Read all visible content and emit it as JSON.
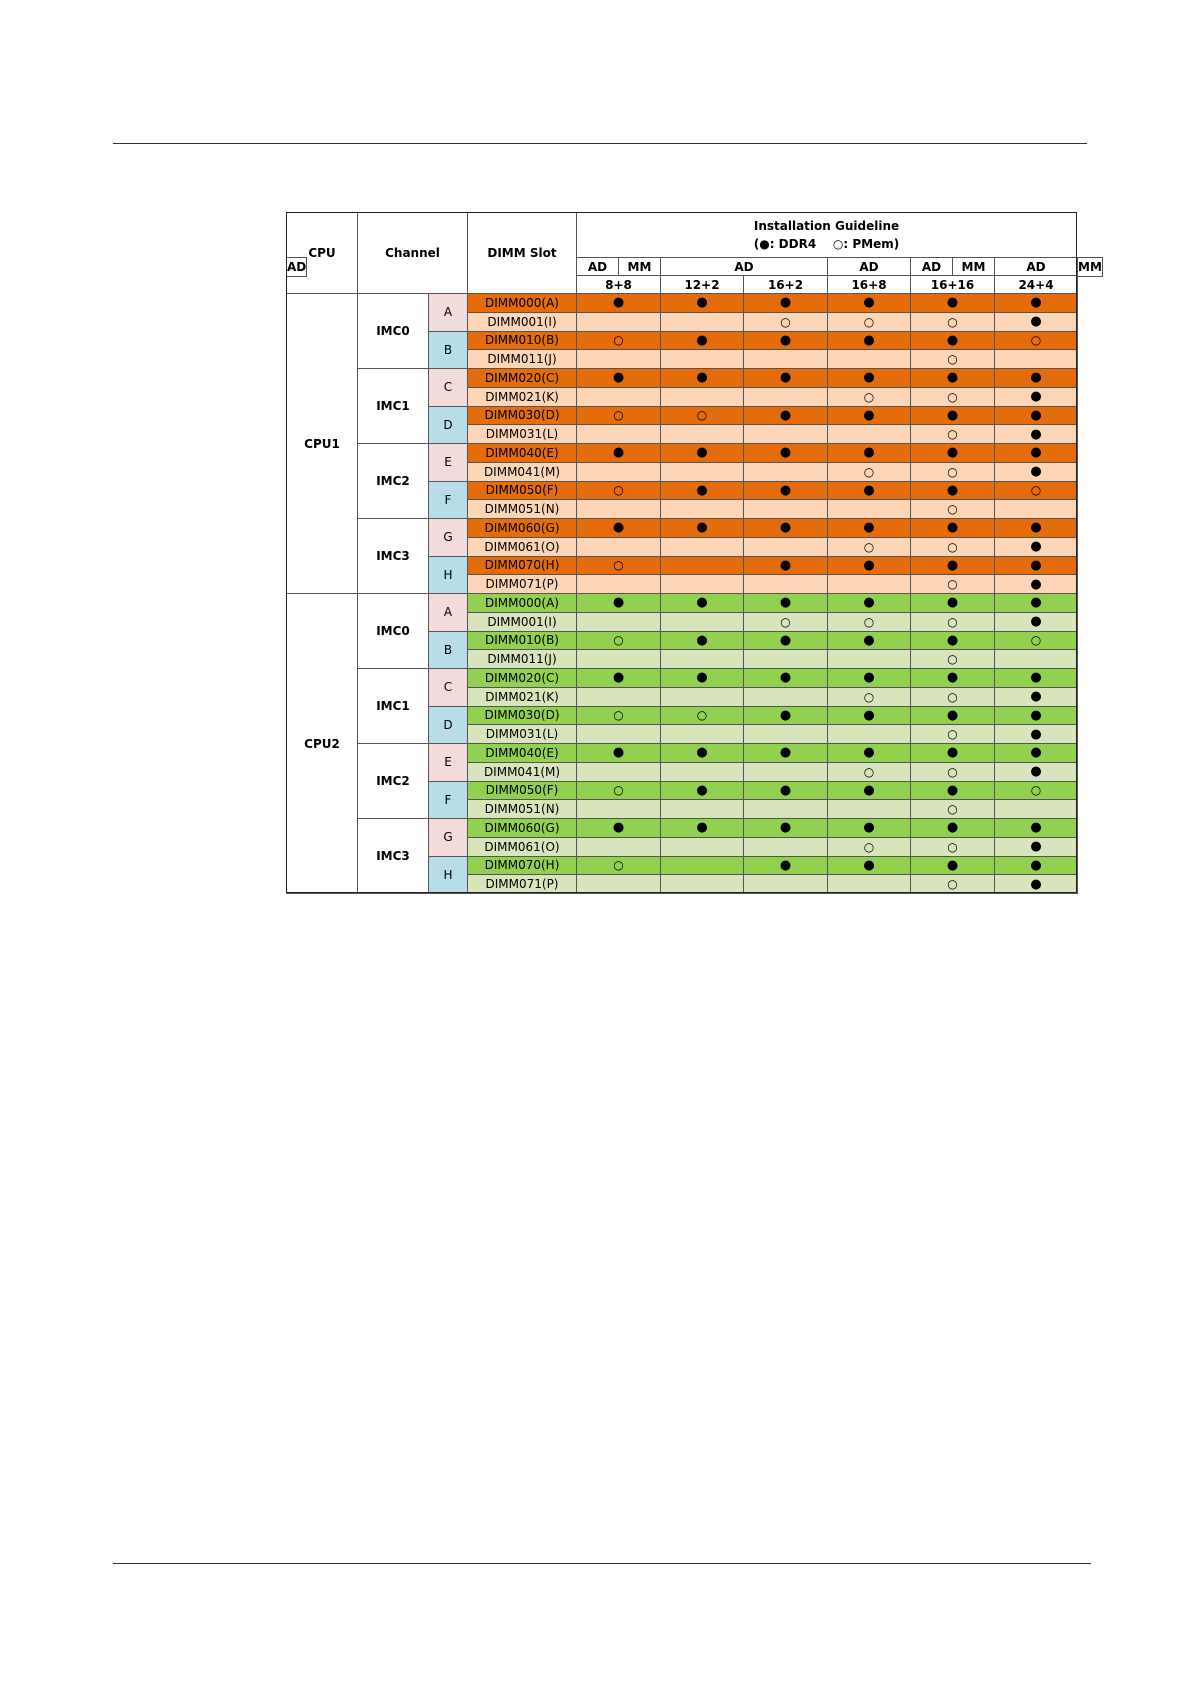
{
  "header": {
    "cpu": "CPU",
    "channel": "Channel",
    "dimm_slot": "DIMM Slot",
    "guideline_title": "Installation Guideline",
    "legend_open": "(",
    "legend_ddr4_symbol": "●",
    "legend_ddr4_label": ": DDR4",
    "legend_pmem_symbol": "○",
    "legend_pmem_label": ": PMem)"
  },
  "modes": [
    {
      "label": "AD",
      "span": 1
    },
    {
      "label": "MM",
      "span": 1
    },
    {
      "label": "AD",
      "span": 2
    },
    {
      "label": "AD",
      "span": 2
    },
    {
      "label": "AD",
      "span": 1
    },
    {
      "label": "MM",
      "span": 1
    },
    {
      "label": "AD",
      "span": 1
    },
    {
      "label": "MM",
      "span": 1
    },
    {
      "label": "AD",
      "span": 2
    }
  ],
  "configs": [
    "8+8",
    "12+2",
    "16+2",
    "16+8",
    "16+16",
    "24+4"
  ],
  "symbols": {
    "D": "●",
    "P": "○"
  },
  "colors": {
    "cpu1_primary": "#e46c0a",
    "cpu1_secondary": "#fbd5b5",
    "cpu2_primary": "#92d050",
    "cpu2_secondary": "#d7e4bc",
    "letter_pink": "#f2dcdb",
    "letter_blue": "#b7dee8"
  },
  "cpus": [
    {
      "name": "CPU1",
      "imcs": [
        {
          "name": "IMC0",
          "channels": [
            {
              "letter": "A",
              "slots": [
                {
                  "label": "DIMM000(A)",
                  "marks": [
                    "D",
                    "D",
                    "D",
                    "D",
                    "D",
                    "D"
                  ]
                },
                {
                  "label": "DIMM001(I)",
                  "marks": [
                    "",
                    "",
                    "P",
                    "P",
                    "P",
                    "D"
                  ]
                }
              ]
            },
            {
              "letter": "B",
              "slots": [
                {
                  "label": "DIMM010(B)",
                  "marks": [
                    "P",
                    "D",
                    "D",
                    "D",
                    "D",
                    "P"
                  ]
                },
                {
                  "label": "DIMM011(J)",
                  "marks": [
                    "",
                    "",
                    "",
                    "",
                    "P",
                    ""
                  ]
                }
              ]
            }
          ]
        },
        {
          "name": "IMC1",
          "channels": [
            {
              "letter": "C",
              "slots": [
                {
                  "label": "DIMM020(C)",
                  "marks": [
                    "D",
                    "D",
                    "D",
                    "D",
                    "D",
                    "D"
                  ]
                },
                {
                  "label": "DIMM021(K)",
                  "marks": [
                    "",
                    "",
                    "",
                    "P",
                    "P",
                    "D"
                  ]
                }
              ]
            },
            {
              "letter": "D",
              "slots": [
                {
                  "label": "DIMM030(D)",
                  "marks": [
                    "P",
                    "P",
                    "D",
                    "D",
                    "D",
                    "D"
                  ]
                },
                {
                  "label": "DIMM031(L)",
                  "marks": [
                    "",
                    "",
                    "",
                    "",
                    "P",
                    "D"
                  ]
                }
              ]
            }
          ]
        },
        {
          "name": "IMC2",
          "channels": [
            {
              "letter": "E",
              "slots": [
                {
                  "label": "DIMM040(E)",
                  "marks": [
                    "D",
                    "D",
                    "D",
                    "D",
                    "D",
                    "D"
                  ]
                },
                {
                  "label": "DIMM041(M)",
                  "marks": [
                    "",
                    "",
                    "",
                    "P",
                    "P",
                    "D"
                  ]
                }
              ]
            },
            {
              "letter": "F",
              "slots": [
                {
                  "label": "DIMM050(F)",
                  "marks": [
                    "P",
                    "D",
                    "D",
                    "D",
                    "D",
                    "P"
                  ]
                },
                {
                  "label": "DIMM051(N)",
                  "marks": [
                    "",
                    "",
                    "",
                    "",
                    "P",
                    ""
                  ]
                }
              ]
            }
          ]
        },
        {
          "name": "IMC3",
          "channels": [
            {
              "letter": "G",
              "slots": [
                {
                  "label": "DIMM060(G)",
                  "marks": [
                    "D",
                    "D",
                    "D",
                    "D",
                    "D",
                    "D"
                  ]
                },
                {
                  "label": "DIMM061(O)",
                  "marks": [
                    "",
                    "",
                    "",
                    "P",
                    "P",
                    "D"
                  ]
                }
              ]
            },
            {
              "letter": "H",
              "slots": [
                {
                  "label": "DIMM070(H)",
                  "marks": [
                    "P",
                    "",
                    "D",
                    "D",
                    "D",
                    "D"
                  ]
                },
                {
                  "label": "DIMM071(P)",
                  "marks": [
                    "",
                    "",
                    "",
                    "",
                    "P",
                    "D"
                  ]
                }
              ]
            }
          ]
        }
      ]
    },
    {
      "name": "CPU2",
      "imcs": [
        {
          "name": "IMC0",
          "channels": [
            {
              "letter": "A",
              "slots": [
                {
                  "label": "DIMM000(A)",
                  "marks": [
                    "D",
                    "D",
                    "D",
                    "D",
                    "D",
                    "D"
                  ]
                },
                {
                  "label": "DIMM001(I)",
                  "marks": [
                    "",
                    "",
                    "P",
                    "P",
                    "P",
                    "D"
                  ]
                }
              ]
            },
            {
              "letter": "B",
              "slots": [
                {
                  "label": "DIMM010(B)",
                  "marks": [
                    "P",
                    "D",
                    "D",
                    "D",
                    "D",
                    "P"
                  ]
                },
                {
                  "label": "DIMM011(J)",
                  "marks": [
                    "",
                    "",
                    "",
                    "",
                    "P",
                    ""
                  ]
                }
              ]
            }
          ]
        },
        {
          "name": "IMC1",
          "channels": [
            {
              "letter": "C",
              "slots": [
                {
                  "label": "DIMM020(C)",
                  "marks": [
                    "D",
                    "D",
                    "D",
                    "D",
                    "D",
                    "D"
                  ]
                },
                {
                  "label": "DIMM021(K)",
                  "marks": [
                    "",
                    "",
                    "",
                    "P",
                    "P",
                    "D"
                  ]
                }
              ]
            },
            {
              "letter": "D",
              "slots": [
                {
                  "label": "DIMM030(D)",
                  "marks": [
                    "P",
                    "P",
                    "D",
                    "D",
                    "D",
                    "D"
                  ]
                },
                {
                  "label": "DIMM031(L)",
                  "marks": [
                    "",
                    "",
                    "",
                    "",
                    "P",
                    "D"
                  ]
                }
              ]
            }
          ]
        },
        {
          "name": "IMC2",
          "channels": [
            {
              "letter": "E",
              "slots": [
                {
                  "label": "DIMM040(E)",
                  "marks": [
                    "D",
                    "D",
                    "D",
                    "D",
                    "D",
                    "D"
                  ]
                },
                {
                  "label": "DIMM041(M)",
                  "marks": [
                    "",
                    "",
                    "",
                    "P",
                    "P",
                    "D"
                  ]
                }
              ]
            },
            {
              "letter": "F",
              "slots": [
                {
                  "label": "DIMM050(F)",
                  "marks": [
                    "P",
                    "D",
                    "D",
                    "D",
                    "D",
                    "P"
                  ]
                },
                {
                  "label": "DIMM051(N)",
                  "marks": [
                    "",
                    "",
                    "",
                    "",
                    "P",
                    ""
                  ]
                }
              ]
            }
          ]
        },
        {
          "name": "IMC3",
          "channels": [
            {
              "letter": "G",
              "slots": [
                {
                  "label": "DIMM060(G)",
                  "marks": [
                    "D",
                    "D",
                    "D",
                    "D",
                    "D",
                    "D"
                  ]
                },
                {
                  "label": "DIMM061(O)",
                  "marks": [
                    "",
                    "",
                    "",
                    "P",
                    "P",
                    "D"
                  ]
                }
              ]
            },
            {
              "letter": "H",
              "slots": [
                {
                  "label": "DIMM070(H)",
                  "marks": [
                    "P",
                    "",
                    "D",
                    "D",
                    "D",
                    "D"
                  ]
                },
                {
                  "label": "DIMM071(P)",
                  "marks": [
                    "",
                    "",
                    "",
                    "",
                    "P",
                    "D"
                  ]
                }
              ]
            }
          ]
        }
      ]
    }
  ]
}
